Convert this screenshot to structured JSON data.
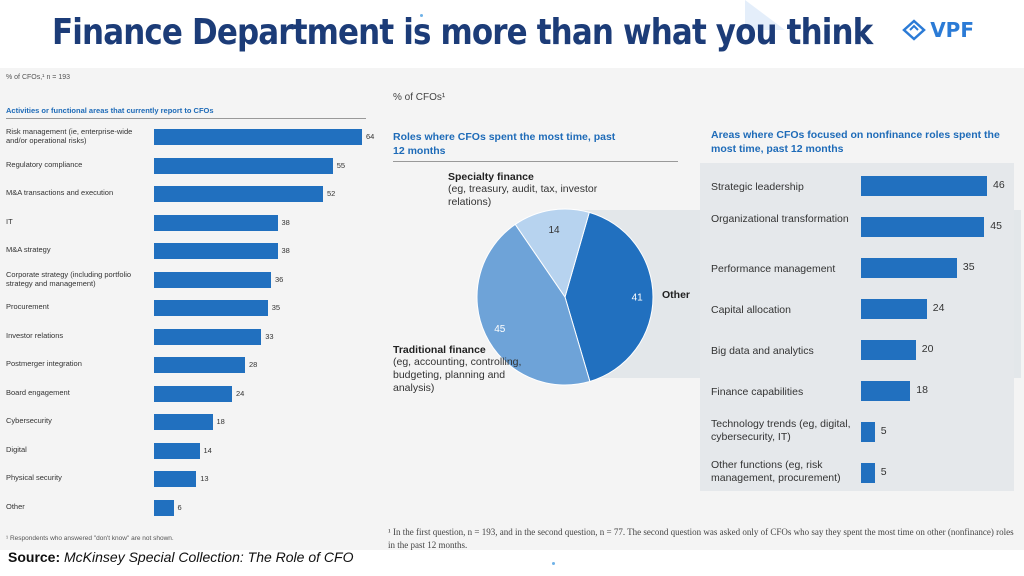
{
  "title": "Finance Department is more than what you think",
  "logo": {
    "text": "VPF",
    "icon": "vpf-mark-icon"
  },
  "left_panel": {
    "meta": "% of CFOs,¹ n = 193",
    "heading": "Activities or functional areas that currently report to CFOs",
    "footnote": "¹ Respondents who answered \"don't know\" are not shown."
  },
  "source": {
    "prefix": "Source:",
    "text": "McKinsey Special Collection: The Role of CFO"
  },
  "middle_panel": {
    "meta": "% of CFOs¹",
    "heading": "Roles where CFOs spent the most time, past 12 months",
    "segments": [
      {
        "name": "Specialty finance",
        "desc": "(eg, treasury, audit, tax, investor relations)",
        "value_label": "14"
      },
      {
        "name": "Traditional finance",
        "desc": "(eg, accounting, controlling, budgeting, planning and analysis)",
        "value_label": "45"
      },
      {
        "name": "Other",
        "desc": "",
        "value_label": "41"
      }
    ]
  },
  "right_panel": {
    "heading": "Areas where CFOs focused on nonfinance roles spent the most time, past 12 months"
  },
  "footnote_bottom": "¹ In the first question, n = 193, and in the second question, n = 77. The second question was asked only of CFOs who say they spent the most time on other (nonfinance) roles in the past 12 months.",
  "colors": {
    "bar": "#2170bf",
    "title": "#1c3c78",
    "accent": "#1e6bb8",
    "pie_dark": "#2170bf",
    "pie_mid": "#6ea3d8",
    "pie_light": "#b7d3ef"
  },
  "chart_data": [
    {
      "type": "bar",
      "orientation": "horizontal",
      "title": "Activities or functional areas that currently report to CFOs",
      "categories": [
        "Risk management (ie, enterprise-wide and/or operational risks)",
        "Regulatory compliance",
        "M&A transactions and execution",
        "IT",
        "M&A strategy",
        "Corporate strategy (including portfolio strategy and management)",
        "Procurement",
        "Investor relations",
        "Postmerger integration",
        "Board engagement",
        "Cybersecurity",
        "Digital",
        "Physical security",
        "Other"
      ],
      "values": [
        64,
        55,
        52,
        38,
        38,
        36,
        35,
        33,
        28,
        24,
        18,
        14,
        13,
        6
      ],
      "value_labels": [
        "64",
        "55",
        "52",
        "38",
        "38",
        "36",
        "35",
        "33",
        "28",
        "24",
        "18",
        "14",
        "13",
        "6"
      ],
      "xlim": [
        0,
        64
      ],
      "grid": false
    },
    {
      "type": "pie",
      "title": "Roles where CFOs spent the most time, past 12 months",
      "categories": [
        "Other",
        "Traditional finance",
        "Specialty finance"
      ],
      "values": [
        41,
        45,
        14
      ]
    },
    {
      "type": "bar",
      "orientation": "horizontal",
      "title": "Areas where CFOs focused on nonfinance roles spent the most time, past 12 months",
      "categories": [
        "Strategic leadership",
        "Organizational transformation",
        "Performance management",
        "Capital allocation",
        "Big data and analytics",
        "Finance capabilities",
        "Technology trends (eg, digital, cybersecurity, IT)",
        "Other functions (eg, risk management, procurement)"
      ],
      "values": [
        46,
        45,
        35,
        24,
        20,
        18,
        5,
        5
      ],
      "value_labels": [
        "46",
        "45",
        "35",
        "24",
        "20",
        "18",
        "5",
        "5"
      ],
      "xlim": [
        0,
        46
      ],
      "grid": false
    }
  ]
}
